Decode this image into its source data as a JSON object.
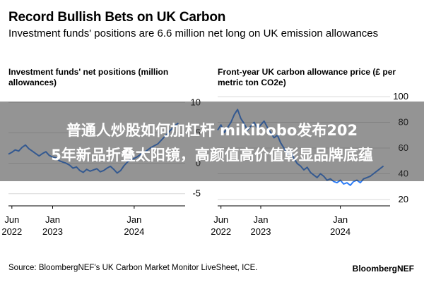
{
  "header": {
    "title": "Record Bullish Bets on UK Carbon",
    "subtitle": "Investment funds' positions are 6.6 million net long on UK emission allowances"
  },
  "footer": {
    "source": "Source: BloombergNEF's UK Carbon Market Monitor LiveSheet, ICE.",
    "logo": "BloombergNEF"
  },
  "overlay": {
    "line1": "普通人炒股如何加杠杆 mikibobo发布202",
    "line2": "5年新品折叠太阳镜，高颜值高价值彰显品牌底蕴"
  },
  "colors": {
    "line": "#2b7cf7",
    "grid": "#d9d9d9",
    "overlay": "#3c3c3c"
  },
  "chart_data": [
    {
      "type": "line",
      "title": "Investment funds' net positions (million allowances)",
      "ylim": [
        -7,
        12
      ],
      "ticks": [
        {
          "value": 10,
          "label": "10"
        },
        {
          "value": 5,
          "label": "5"
        },
        {
          "value": 0,
          "label": "0"
        },
        {
          "value": -5,
          "label": "-5"
        }
      ],
      "x_ticks": [
        {
          "pos": 0.5,
          "line1": "Jun",
          "line2": "2022"
        },
        {
          "pos": 6.5,
          "line1": "Jan",
          "line2": "2023"
        },
        {
          "pos": 18.5,
          "line1": "Jan",
          "line2": "2024"
        }
      ],
      "xlim": [
        0,
        26
      ],
      "series": [
        {
          "x": [
            0.0,
            0.5,
            1.0,
            1.5,
            2.0,
            2.5,
            3.0,
            3.5,
            4.0,
            4.5,
            5.0,
            5.5,
            6.0,
            6.5,
            7.0,
            7.5,
            8.0,
            8.5,
            9.0,
            9.5,
            10.0,
            10.5,
            11.0,
            11.5,
            12.0,
            12.5,
            13.0,
            13.5,
            14.0,
            14.5,
            15.0,
            15.5,
            16.0,
            16.5,
            17.0,
            17.5,
            18.0,
            18.5,
            19.0,
            19.5,
            20.0,
            20.5,
            21.0,
            21.5,
            22.0,
            22.5,
            23.0,
            23.5,
            24.0,
            24.5,
            25.0
          ],
          "values": [
            1.5,
            1.8,
            2.2,
            2.0,
            2.6,
            3.0,
            2.4,
            2.0,
            1.6,
            1.2,
            1.6,
            1.9,
            1.3,
            1.0,
            0.9,
            0.4,
            0.2,
            0.0,
            -0.3,
            -0.8,
            -0.6,
            -1.2,
            -1.5,
            -1.0,
            -1.3,
            -1.1,
            -0.9,
            -1.4,
            -1.2,
            -0.8,
            -0.5,
            -1.0,
            -1.6,
            -1.2,
            -0.4,
            0.2,
            0.6,
            0.8,
            1.1,
            1.5,
            1.8,
            2.2,
            2.6,
            2.9,
            3.2,
            3.8,
            4.4,
            5.0,
            5.6,
            6.2,
            6.6
          ]
        }
      ]
    },
    {
      "type": "line",
      "title": "Front-year UK carbon allowance price (£ per metric ton CO2e)",
      "ylim": [
        15,
        105
      ],
      "ticks": [
        {
          "value": 100,
          "label": "100"
        },
        {
          "value": 80,
          "label": "80"
        },
        {
          "value": 60,
          "label": "60"
        },
        {
          "value": 40,
          "label": "40"
        },
        {
          "value": 20,
          "label": "20"
        }
      ],
      "x_ticks": [
        {
          "pos": 0.5,
          "line1": "Jun",
          "line2": "2022"
        },
        {
          "pos": 6.5,
          "line1": "Jan",
          "line2": "2023"
        },
        {
          "pos": 18.5,
          "line1": "Jan",
          "line2": "2024"
        }
      ],
      "xlim": [
        0,
        26
      ],
      "series": [
        {
          "x": [
            0.0,
            0.5,
            1.0,
            1.5,
            2.0,
            2.5,
            3.0,
            3.5,
            4.0,
            4.5,
            5.0,
            5.5,
            6.0,
            6.5,
            7.0,
            7.5,
            8.0,
            8.5,
            9.0,
            9.5,
            10.0,
            10.5,
            11.0,
            11.5,
            12.0,
            12.5,
            13.0,
            13.5,
            14.0,
            14.5,
            15.0,
            15.5,
            16.0,
            16.5,
            17.0,
            17.5,
            18.0,
            18.5,
            19.0,
            19.5,
            20.0,
            20.5,
            21.0,
            21.5,
            22.0,
            22.5,
            23.0,
            23.5,
            24.0,
            24.5,
            25.0
          ],
          "values": [
            74,
            78,
            72,
            76,
            80,
            86,
            90,
            83,
            79,
            74,
            77,
            80,
            75,
            78,
            81,
            76,
            72,
            68,
            70,
            64,
            60,
            55,
            58,
            52,
            48,
            46,
            43,
            45,
            41,
            39,
            37,
            40,
            38,
            35,
            36,
            34,
            33,
            35,
            32,
            33,
            31,
            34,
            35,
            33,
            36,
            37,
            38,
            40,
            42,
            44,
            46
          ]
        }
      ]
    }
  ]
}
